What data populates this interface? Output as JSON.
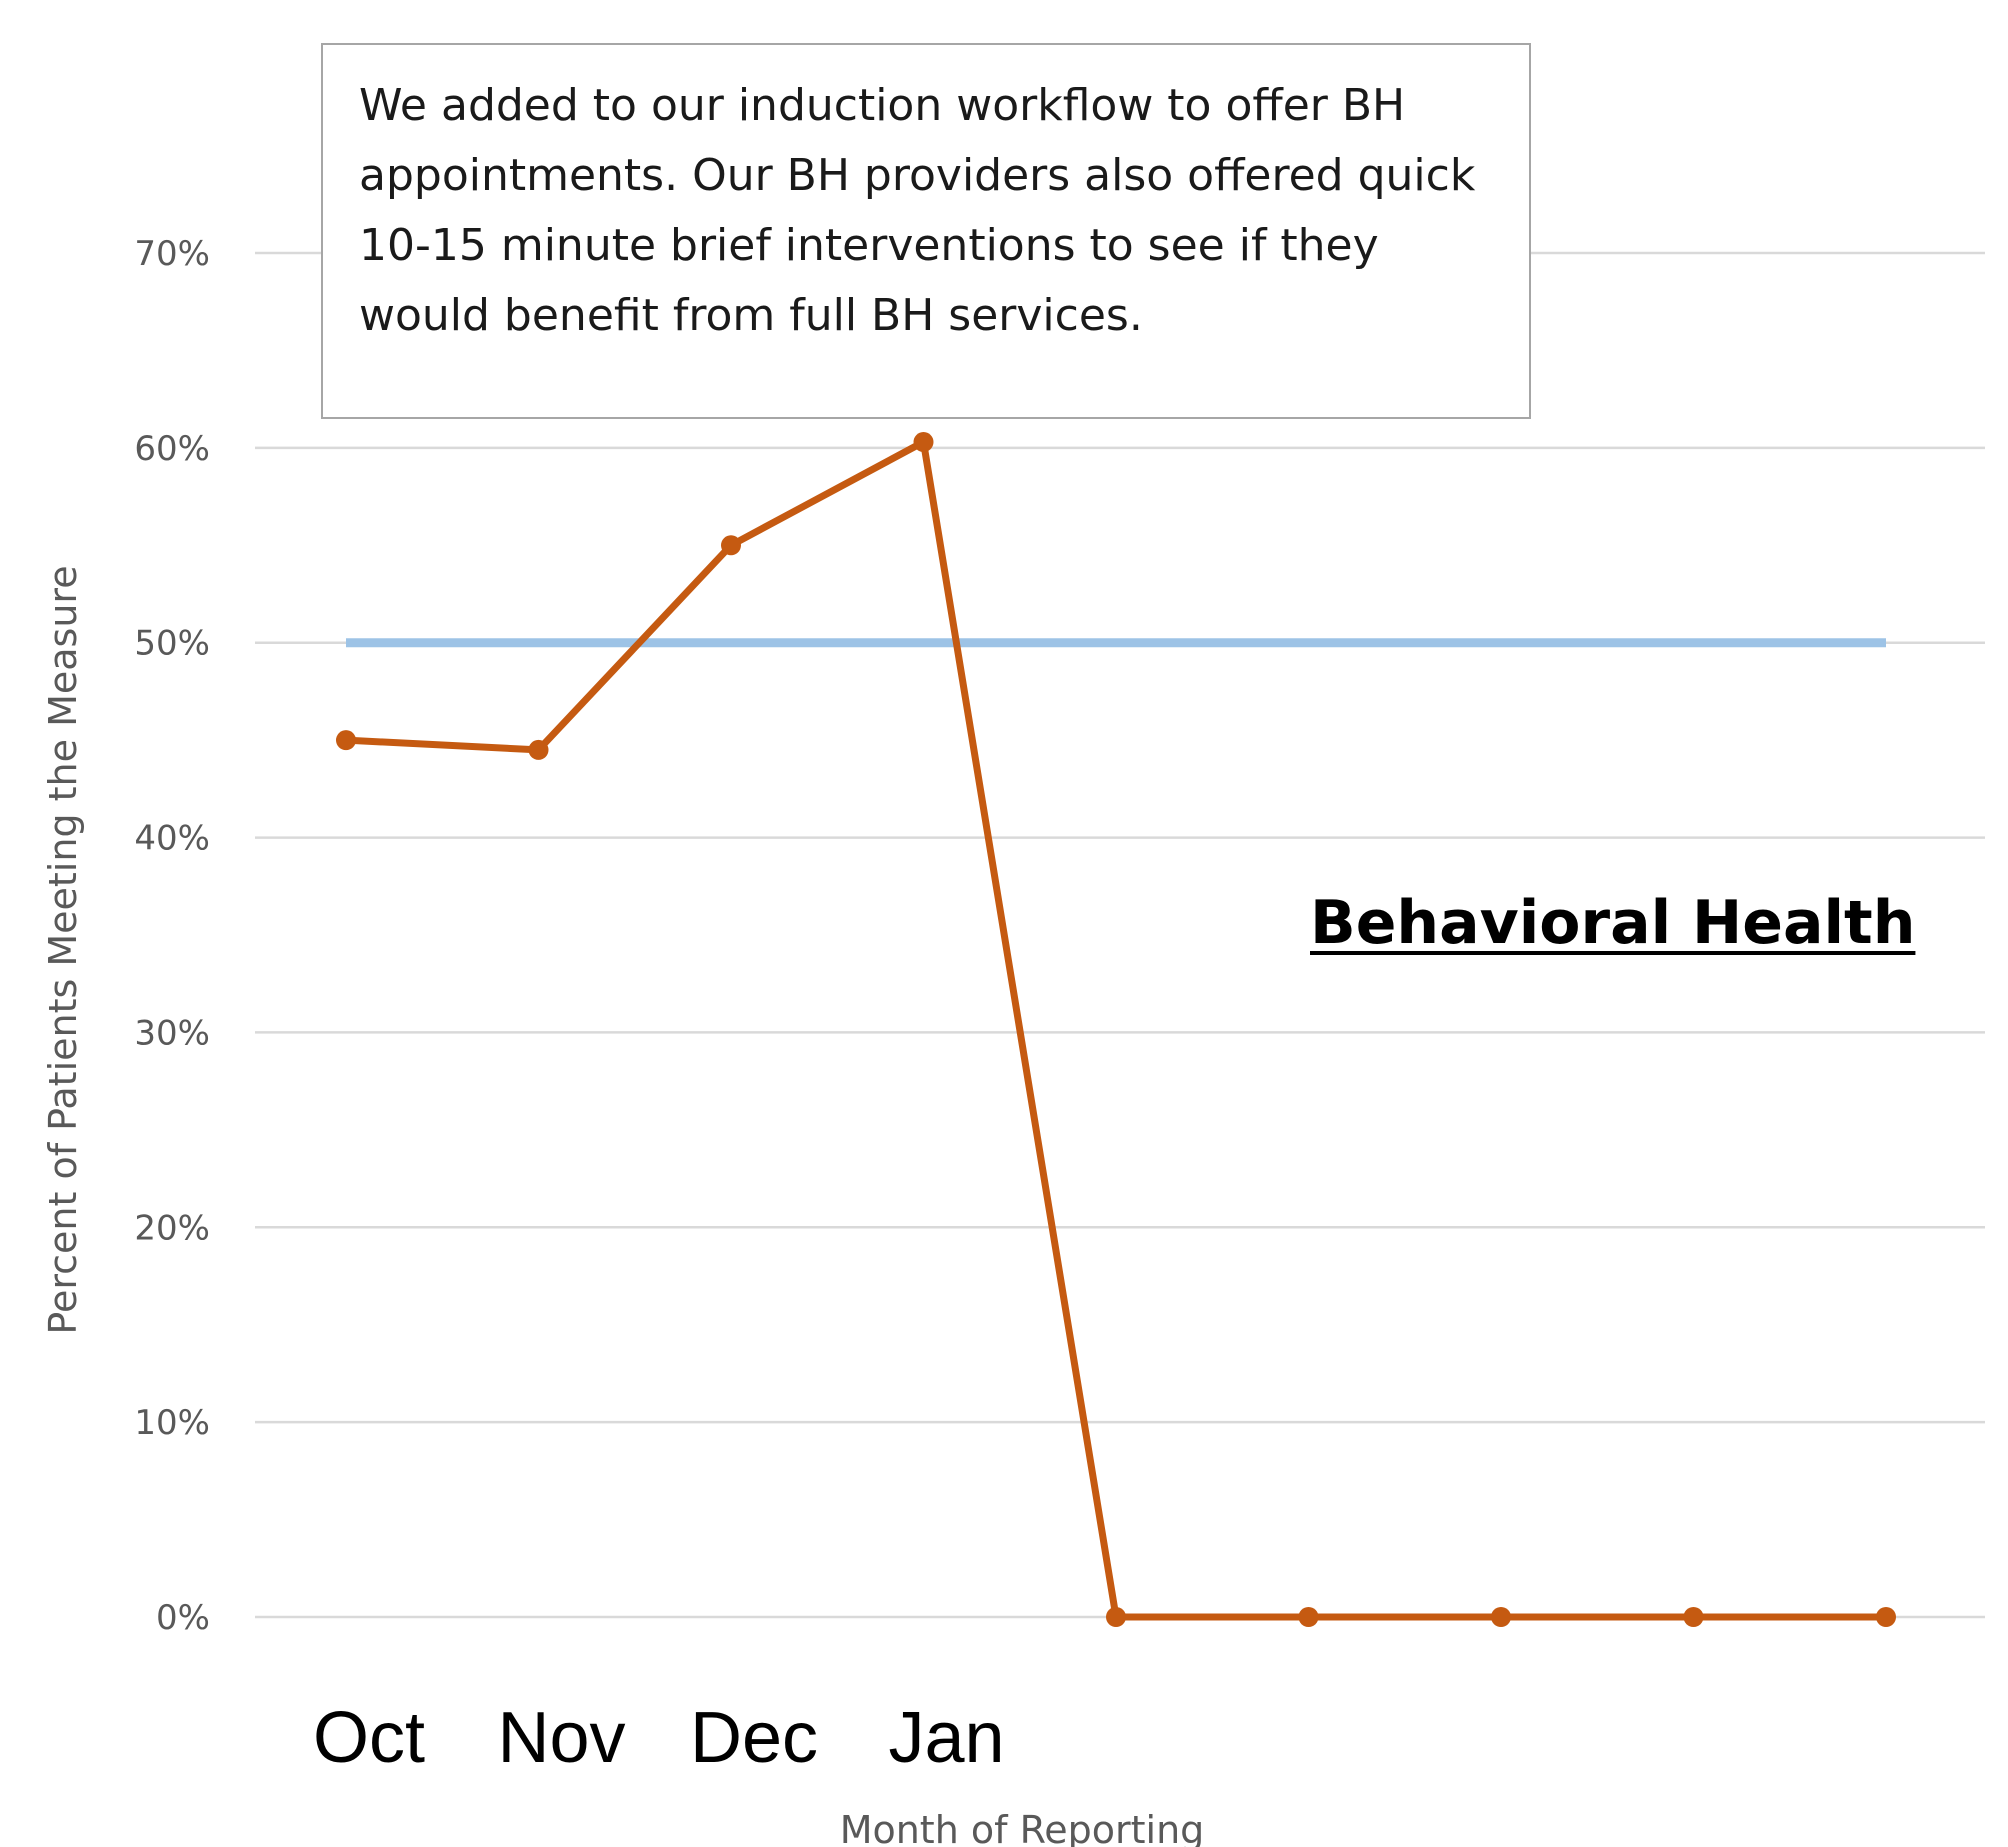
{
  "chart_data": {
    "type": "line",
    "xlabel": "Month of Reporting",
    "ylabel": "Percent of Patients Meeting the Measure",
    "ylim": [
      0,
      70
    ],
    "yticks": [
      0,
      10,
      20,
      30,
      40,
      50,
      60,
      70
    ],
    "ytick_suffix": "%",
    "grid": true,
    "categories": [
      "Oct",
      "Nov",
      "Dec",
      "Jan",
      "",
      "",
      "",
      "",
      ""
    ],
    "series": [
      {
        "name": "Behavioral Health",
        "color": "#c55a11",
        "values": [
          45,
          44.5,
          55,
          60.3,
          0,
          0,
          0,
          0,
          0
        ]
      },
      {
        "name": "",
        "color": "#9dc3e6",
        "values": [
          50,
          50,
          50,
          50,
          50,
          50,
          50,
          50,
          50
        ]
      }
    ],
    "annotation": "We added to our induction workflow to offer BH appointments. Our BH providers also offered quick 10-15 minute brief interventions to see if they would benefit from full BH services.",
    "series_label": "Behavioral Health"
  }
}
